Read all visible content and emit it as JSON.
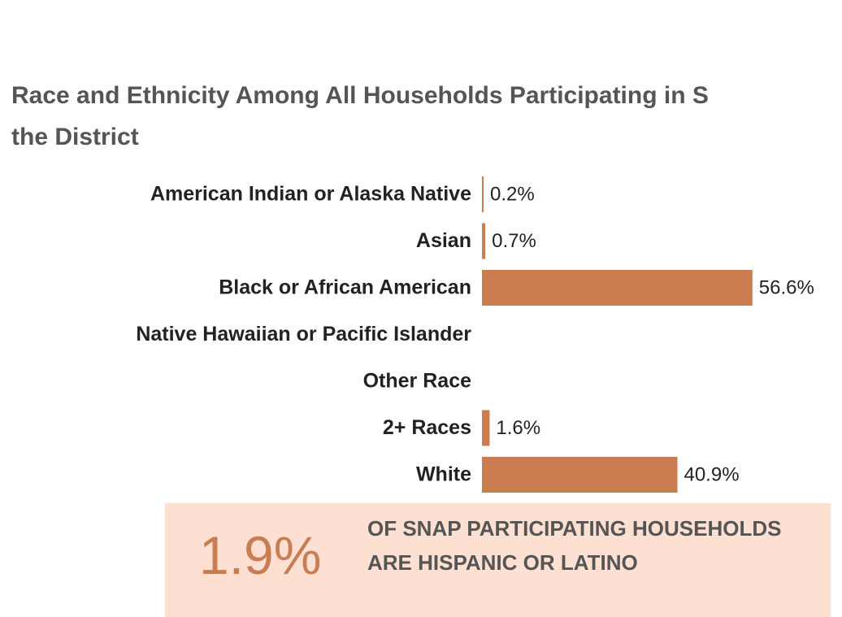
{
  "chart_data": {
    "type": "bar",
    "title": "Race and Ethnicity Among All Households Participating in S\nthe District",
    "categories": [
      "American Indian or Alaska Native",
      "Asian",
      "Black or African American",
      "Native Hawaiian or Pacific Islander",
      "Other Race",
      "2+ Races",
      "White"
    ],
    "values": [
      0.2,
      0.7,
      56.6,
      null,
      null,
      1.6,
      40.9
    ],
    "value_labels": [
      "0.2%",
      "0.7%",
      "56.6%",
      null,
      null,
      "1.6%",
      "40.9%"
    ],
    "color": "#cb7d51",
    "callout": {
      "label": "1.9%",
      "text": "OF SNAP PARTICIPATING HOUSEHOLDS ARE HISPANIC OR LATINO"
    }
  }
}
